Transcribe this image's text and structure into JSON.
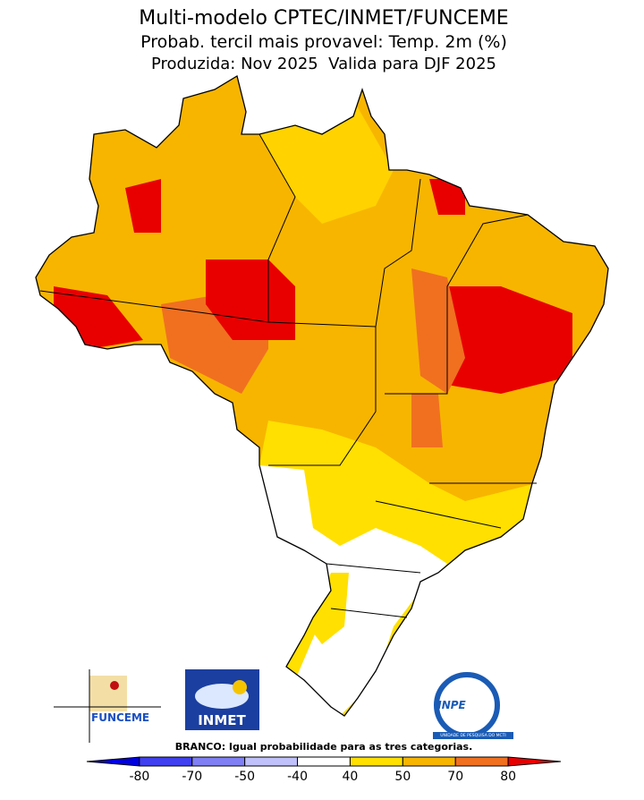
{
  "header": {
    "title": "Multi-modelo CPTEC/INMET/FUNCEME",
    "subtitle": "Probab. tercil mais provavel: Temp. 2m (%)",
    "period": "Produzida: Nov 2025  Valida para DJF 2025"
  },
  "logos": {
    "funceme": "FUNCEME",
    "inmet": "INMET",
    "inpe": "INPE",
    "inpe_caption": "UNIDADE DE PESQUISA DO MCTI"
  },
  "legend": {
    "note": "BRANCO: Igual probabilidade para as tres categorias.",
    "ticks": [
      -80,
      -70,
      -50,
      -40,
      40,
      50,
      70,
      80
    ],
    "colors": [
      "#0000e0",
      "#4040f0",
      "#8080f4",
      "#c0c0fa",
      "#ffffff",
      "#ffe000",
      "#f7b500",
      "#f07020",
      "#e80000"
    ]
  }
}
